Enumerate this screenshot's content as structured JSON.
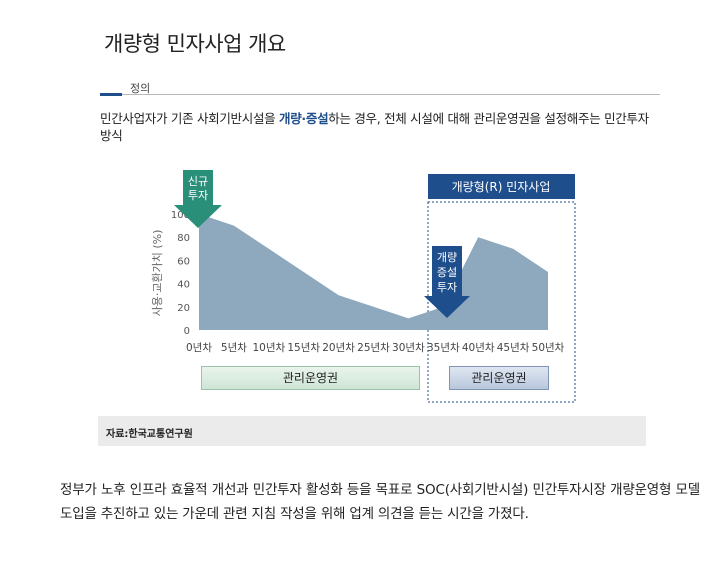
{
  "title": "개량형 민자사업 개요",
  "section": {
    "label": "정의"
  },
  "definition": {
    "before": "민간사업자가 기존 사회기반시설을 ",
    "highlight": "개량·증설",
    "after": "하는 경우, 전체 시설에 대해 관리운영권을 설정해주는 민간투자방식"
  },
  "chart": {
    "box_title": "개량형(R) 민자사업",
    "arrow_new": [
      "신규",
      "투자"
    ],
    "arrow_expand": [
      "개량",
      "증설",
      "투자"
    ],
    "ylabel": "사용·교환가치 (%)",
    "mgmt_1": "관리운영권",
    "mgmt_2": "관리운영권",
    "colors": {
      "area": "#8ea8bd",
      "arrow_new": "#2a8f79",
      "arrow_expand": "#1f4e8c",
      "box_title": "#1f4e8c"
    }
  },
  "chart_data": {
    "type": "area",
    "x": [
      0,
      5,
      10,
      15,
      20,
      25,
      30,
      35,
      40,
      45,
      50
    ],
    "xticks": [
      "0년차",
      "5년차",
      "10년차",
      "15년차",
      "20년차",
      "25년차",
      "30년차",
      "35년차",
      "40년차",
      "45년차",
      "50년차"
    ],
    "yticks": [
      "0",
      "20",
      "40",
      "60",
      "80",
      "100"
    ],
    "values": [
      100,
      90,
      70,
      50,
      30,
      20,
      10,
      20,
      80,
      70,
      50
    ],
    "ylim": [
      0,
      100
    ],
    "ylabel": "사용·교환가치 (%)"
  },
  "source": "자료:한국교통연구원",
  "body_text": "정부가 노후 인프라 효율적 개선과 민간투자 활성화 등을 목표로 SOC(사회기반시설) 민간투자시장 개량운영형 모델 도입을 추진하고 있는 가운데 관련 지침 작성을 위해 업계 의견을 듣는 시간을 가졌다."
}
